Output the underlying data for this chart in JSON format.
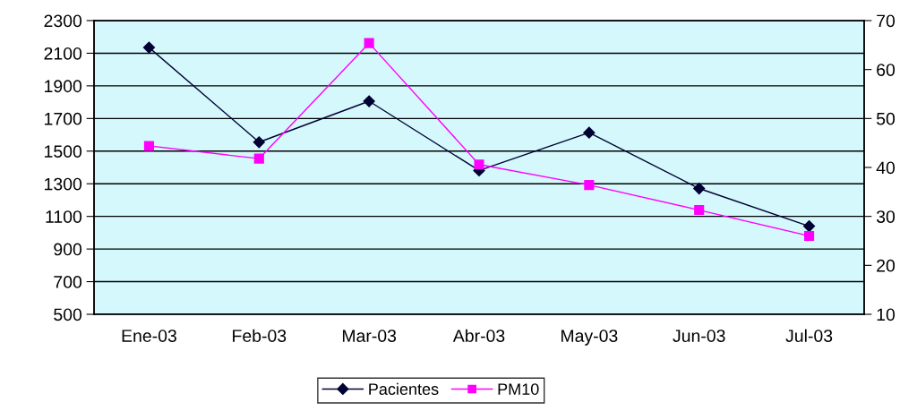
{
  "chart_data": {
    "type": "line",
    "categories": [
      "Ene-03",
      "Feb-03",
      "Mar-03",
      "Abr-03",
      "May-03",
      "Jun-03",
      "Jul-03"
    ],
    "series": [
      {
        "name": "Pacientes",
        "color": "#000033",
        "marker": "diamond",
        "values": [
          2135,
          1555,
          1806,
          1381,
          1613,
          1271,
          1040
        ]
      },
      {
        "name": "PM10",
        "color": "#ff00ff",
        "marker": "square",
        "axis": "y2",
        "values": [
          44.4,
          41.8,
          65.4,
          40.6,
          36.4,
          31.3,
          26.0
        ]
      }
    ],
    "ylim": [
      500,
      2300
    ],
    "yticks": [
      500,
      700,
      900,
      1100,
      1300,
      1500,
      1700,
      1900,
      2100,
      2300
    ],
    "y2lim": [
      10,
      70
    ],
    "y2ticks": [
      10,
      20,
      30,
      40,
      50,
      60,
      70
    ],
    "grid": "y",
    "legend": "bottom",
    "line_style": "solid"
  }
}
